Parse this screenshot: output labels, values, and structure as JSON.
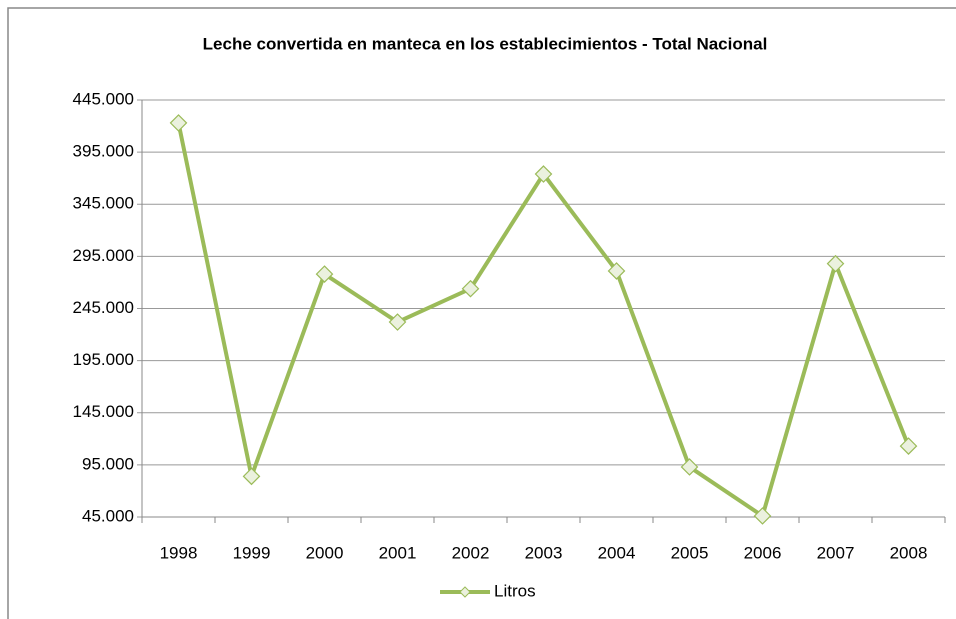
{
  "chart_data": {
    "type": "line",
    "title": "Leche convertida en manteca en los establecimientos - Total Nacional",
    "categories": [
      "1998",
      "1999",
      "2000",
      "2001",
      "2002",
      "2003",
      "2004",
      "2005",
      "2006",
      "2007",
      "2008"
    ],
    "series": [
      {
        "name": "Litros",
        "color": "#9bbb59",
        "values": [
          423000,
          84000,
          278000,
          232000,
          264000,
          374000,
          281000,
          93000,
          46000,
          288000,
          113000
        ]
      }
    ],
    "ylim": [
      45000,
      445000
    ],
    "yticks": [
      {
        "value": 45000,
        "label": "45.000"
      },
      {
        "value": 95000,
        "label": "95.000"
      },
      {
        "value": 145000,
        "label": "145.000"
      },
      {
        "value": 195000,
        "label": "195.000"
      },
      {
        "value": 245000,
        "label": "245.000"
      },
      {
        "value": 295000,
        "label": "295.000"
      },
      {
        "value": 345000,
        "label": "345.000"
      },
      {
        "value": 395000,
        "label": "395.000"
      },
      {
        "value": 445000,
        "label": "445.000"
      }
    ],
    "grid": true,
    "legend": "bottom"
  }
}
